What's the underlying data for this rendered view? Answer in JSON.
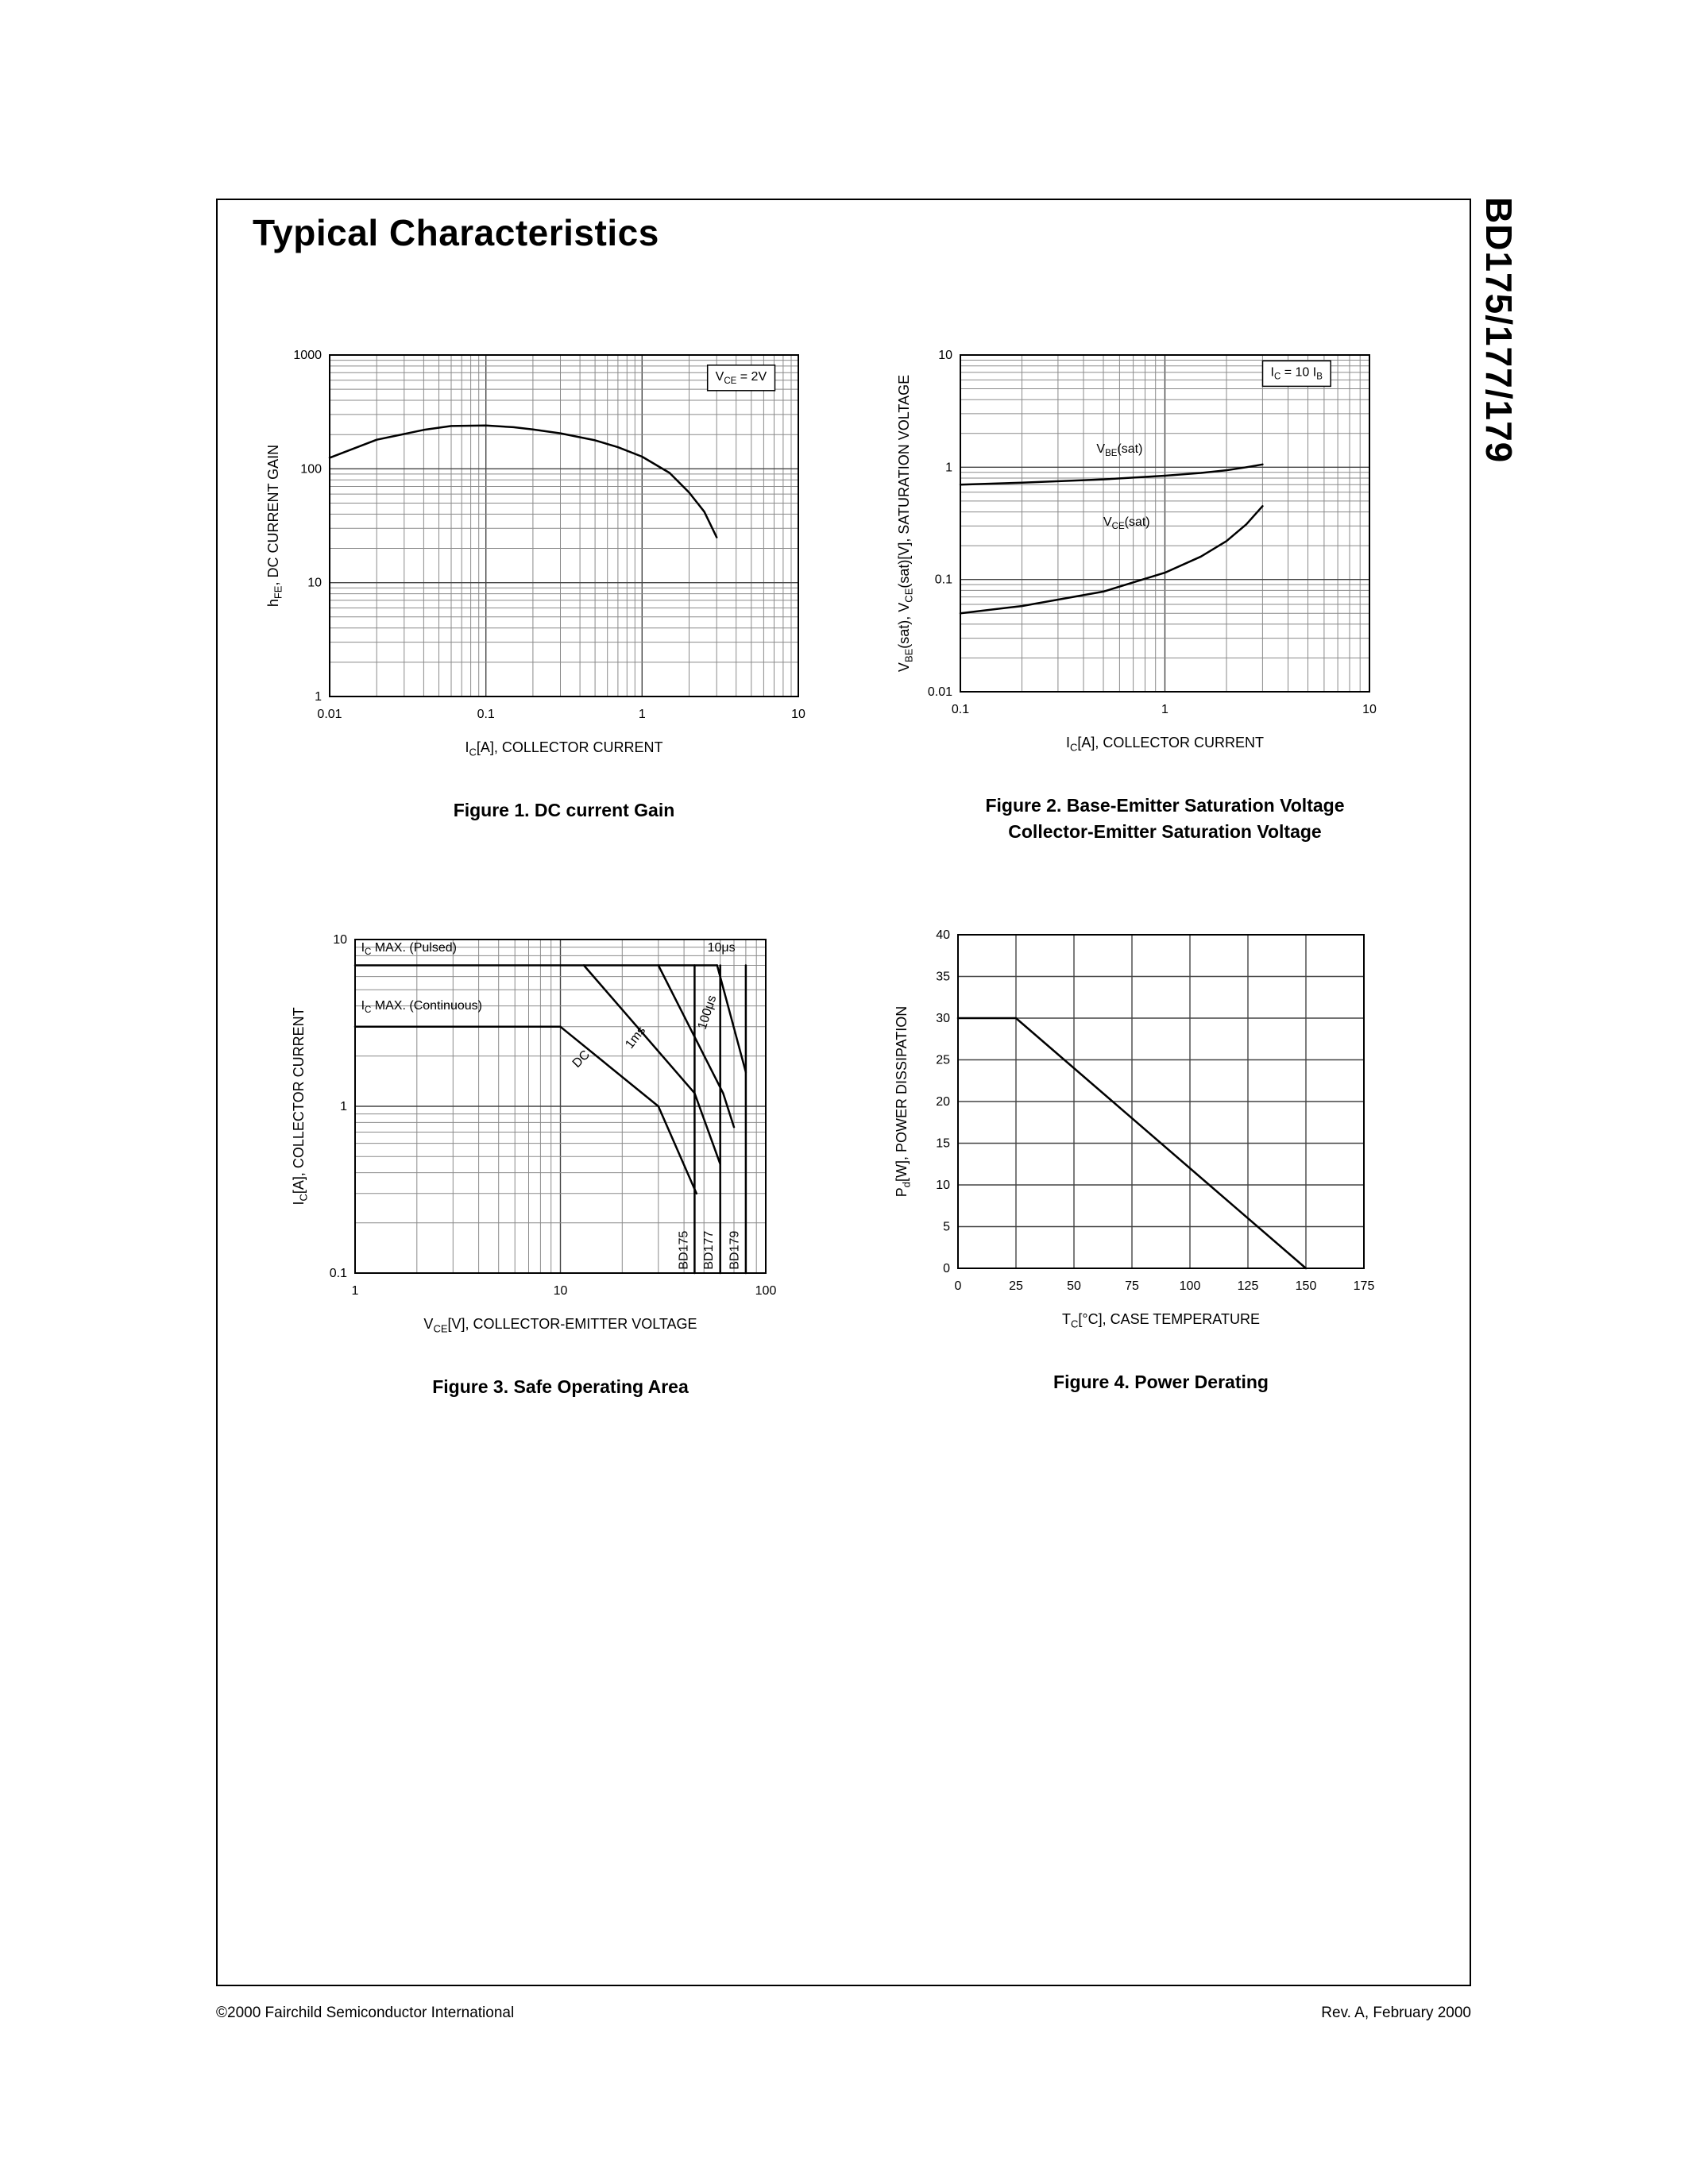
{
  "page": {
    "title": "Typical Characteristics",
    "side_title": "BD175/177/179",
    "footer_left": "©2000 Fairchild Semiconductor International",
    "footer_right": "Rev. A, February 2000",
    "colors": {
      "ink": "#000000",
      "grid_minor": "#8a8a8a",
      "grid_major": "#444444",
      "background": "#ffffff"
    }
  },
  "chart_data": [
    {
      "type": "line",
      "title": "Figure 1. DC current Gain",
      "xscale": "log",
      "xlim": [
        0.01,
        10
      ],
      "xticks": [
        "0.01",
        "0.1",
        "1",
        "10"
      ],
      "yscale": "log",
      "ylim": [
        1,
        1000
      ],
      "yticks": [
        "1",
        "10",
        "100",
        "1000"
      ],
      "xlabel": [
        [
          "I"
        ],
        [
          "C",
          "sub"
        ],
        [
          "[A], COLLECTOR CURRENT"
        ]
      ],
      "ylabel": [
        [
          "h"
        ],
        [
          "FE",
          "sub"
        ],
        [
          ", DC CURRENT GAIN"
        ]
      ],
      "annotations": [
        {
          "segments": [
            [
              "V"
            ],
            [
              "CE",
              "sub"
            ],
            [
              " = 2V"
            ]
          ],
          "x": 4.3,
          "y": 600,
          "boxed": true
        }
      ],
      "series": [
        {
          "name": "hFE",
          "points": [
            [
              0.01,
              125
            ],
            [
              0.02,
              180
            ],
            [
              0.04,
              220
            ],
            [
              0.06,
              238
            ],
            [
              0.1,
              240
            ],
            [
              0.15,
              232
            ],
            [
              0.2,
              222
            ],
            [
              0.3,
              205
            ],
            [
              0.5,
              178
            ],
            [
              0.7,
              155
            ],
            [
              1.0,
              128
            ],
            [
              1.5,
              92
            ],
            [
              2.0,
              62
            ],
            [
              2.5,
              42
            ],
            [
              3.0,
              25
            ]
          ]
        }
      ]
    },
    {
      "type": "line",
      "title": "Figure 2. Base-Emitter Saturation Voltage",
      "title2": "Collector-Emitter Saturation Voltage",
      "xscale": "log",
      "xlim": [
        0.1,
        10
      ],
      "xticks": [
        "0.1",
        "1",
        "10"
      ],
      "yscale": "log",
      "ylim": [
        0.01,
        10
      ],
      "yticks": [
        "0.01",
        "0.1",
        "1",
        "10"
      ],
      "xlabel": [
        [
          "I"
        ],
        [
          "C",
          "sub"
        ],
        [
          "[A], COLLECTOR CURRENT"
        ]
      ],
      "ylabel": [
        [
          "V"
        ],
        [
          "BE",
          "sub"
        ],
        [
          "(sat), V"
        ],
        [
          "CE",
          "sub"
        ],
        [
          "(sat)[V], SATURATION VOLTAGE"
        ]
      ],
      "annotations": [
        {
          "segments": [
            [
              "I"
            ],
            [
              "C",
              "sub"
            ],
            [
              " = 10 I"
            ],
            [
              "B",
              "sub"
            ]
          ],
          "x": 4.4,
          "y": 6.5,
          "boxed": true
        },
        {
          "segments": [
            [
              "V"
            ],
            [
              "BE",
              "sub"
            ],
            [
              "(sat)"
            ]
          ],
          "x": 0.6,
          "y": 1.35
        },
        {
          "segments": [
            [
              "V"
            ],
            [
              "CE",
              "sub"
            ],
            [
              "(sat)"
            ]
          ],
          "x": 0.65,
          "y": 0.3
        }
      ],
      "series": [
        {
          "name": "VBE(sat)",
          "points": [
            [
              0.1,
              0.7
            ],
            [
              0.2,
              0.73
            ],
            [
              0.5,
              0.78
            ],
            [
              1.0,
              0.84
            ],
            [
              1.5,
              0.89
            ],
            [
              2.0,
              0.94
            ],
            [
              2.5,
              1.0
            ],
            [
              3.0,
              1.06
            ]
          ]
        },
        {
          "name": "VCE(sat)",
          "points": [
            [
              0.1,
              0.05
            ],
            [
              0.2,
              0.058
            ],
            [
              0.5,
              0.078
            ],
            [
              1.0,
              0.115
            ],
            [
              1.5,
              0.16
            ],
            [
              2.0,
              0.22
            ],
            [
              2.5,
              0.31
            ],
            [
              3.0,
              0.45
            ]
          ]
        }
      ]
    },
    {
      "type": "line",
      "title": "Figure 3. Safe Operating Area",
      "xscale": "log",
      "xlim": [
        1,
        100
      ],
      "xticks": [
        "1",
        "10",
        "100"
      ],
      "yscale": "log",
      "ylim": [
        0.1,
        10
      ],
      "yticks": [
        "0.1",
        "1",
        "10"
      ],
      "xlabel": [
        [
          "V"
        ],
        [
          "CE",
          "sub"
        ],
        [
          "[V], COLLECTOR-EMITTER VOLTAGE"
        ]
      ],
      "ylabel": [
        [
          "I"
        ],
        [
          "C",
          "sub"
        ],
        [
          "[A], COLLECTOR CURRENT"
        ]
      ],
      "annotations": [
        {
          "segments": [
            [
              "I"
            ],
            [
              "C",
              "sub"
            ],
            [
              " MAX. (Pulsed)"
            ]
          ],
          "x": 1.07,
          "y": 8.5,
          "anchor": "start"
        },
        {
          "segments": [
            [
              "I"
            ],
            [
              "C",
              "sub"
            ],
            [
              " MAX. (Continuous)"
            ]
          ],
          "x": 1.07,
          "y": 3.8,
          "anchor": "start"
        },
        {
          "segments": [
            [
              "10μs"
            ]
          ],
          "x": 52,
          "y": 8.5,
          "anchor": "start"
        },
        {
          "segments": [
            [
              "100μs"
            ]
          ],
          "x": 54,
          "y": 3.6,
          "rotate": -72
        },
        {
          "segments": [
            [
              "1ms"
            ]
          ],
          "x": 24,
          "y": 2.5,
          "rotate": -52
        },
        {
          "segments": [
            [
              "DC"
            ]
          ],
          "x": 13,
          "y": 1.85,
          "rotate": -45
        },
        {
          "segments": [
            [
              "BD175"
            ]
          ],
          "x": 41.5,
          "y": 0.105,
          "rotate": -90,
          "anchor": "start"
        },
        {
          "segments": [
            [
              "BD177"
            ]
          ],
          "x": 55,
          "y": 0.105,
          "rotate": -90,
          "anchor": "start"
        },
        {
          "segments": [
            [
              "BD179"
            ]
          ],
          "x": 73.5,
          "y": 0.105,
          "rotate": -90,
          "anchor": "start"
        }
      ],
      "series": [
        {
          "name": "IC max pulsed",
          "points": [
            [
              1,
              7
            ],
            [
              58,
              7
            ]
          ]
        },
        {
          "name": "IC max continuous",
          "points": [
            [
              1,
              3
            ],
            [
              10,
              3
            ]
          ]
        },
        {
          "name": "DC",
          "points": [
            [
              10,
              3
            ],
            [
              30,
              1.0
            ],
            [
              46,
              0.3
            ]
          ]
        },
        {
          "name": "1ms",
          "points": [
            [
              13,
              7
            ],
            [
              45,
              1.2
            ],
            [
              60,
              0.45
            ]
          ]
        },
        {
          "name": "100us",
          "points": [
            [
              30,
              7
            ],
            [
              62,
              1.2
            ],
            [
              70,
              0.75
            ]
          ]
        },
        {
          "name": "10us",
          "points": [
            [
              58,
              7
            ],
            [
              80,
              1.6
            ]
          ]
        },
        {
          "name": "BD175 limit",
          "points": [
            [
              45,
              0.1
            ],
            [
              45,
              7
            ]
          ]
        },
        {
          "name": "BD177 limit",
          "points": [
            [
              60,
              0.1
            ],
            [
              60,
              7
            ]
          ]
        },
        {
          "name": "BD179 limit",
          "points": [
            [
              80,
              0.1
            ],
            [
              80,
              7
            ]
          ]
        }
      ]
    },
    {
      "type": "line",
      "title": "Figure 4. Power Derating",
      "xscale": "linear",
      "xlim": [
        0,
        175
      ],
      "xtick_step": 25,
      "xticks": [
        "0",
        "25",
        "50",
        "75",
        "100",
        "125",
        "150",
        "175"
      ],
      "yscale": "linear",
      "ylim": [
        0,
        40
      ],
      "ytick_step": 5,
      "yticks": [
        "0",
        "5",
        "10",
        "15",
        "20",
        "25",
        "30",
        "35",
        "40"
      ],
      "xlabel": [
        [
          "T"
        ],
        [
          "C",
          "sub"
        ],
        [
          "[°C], CASE TEMPERATURE"
        ]
      ],
      "ylabel": [
        [
          "P"
        ],
        [
          "d",
          "sub"
        ],
        [
          "[W], POWER DISSIPATION"
        ]
      ],
      "annotations": [],
      "series": [
        {
          "name": "power derating",
          "points": [
            [
              0,
              30
            ],
            [
              25,
              30
            ],
            [
              150,
              0
            ]
          ]
        }
      ]
    }
  ]
}
